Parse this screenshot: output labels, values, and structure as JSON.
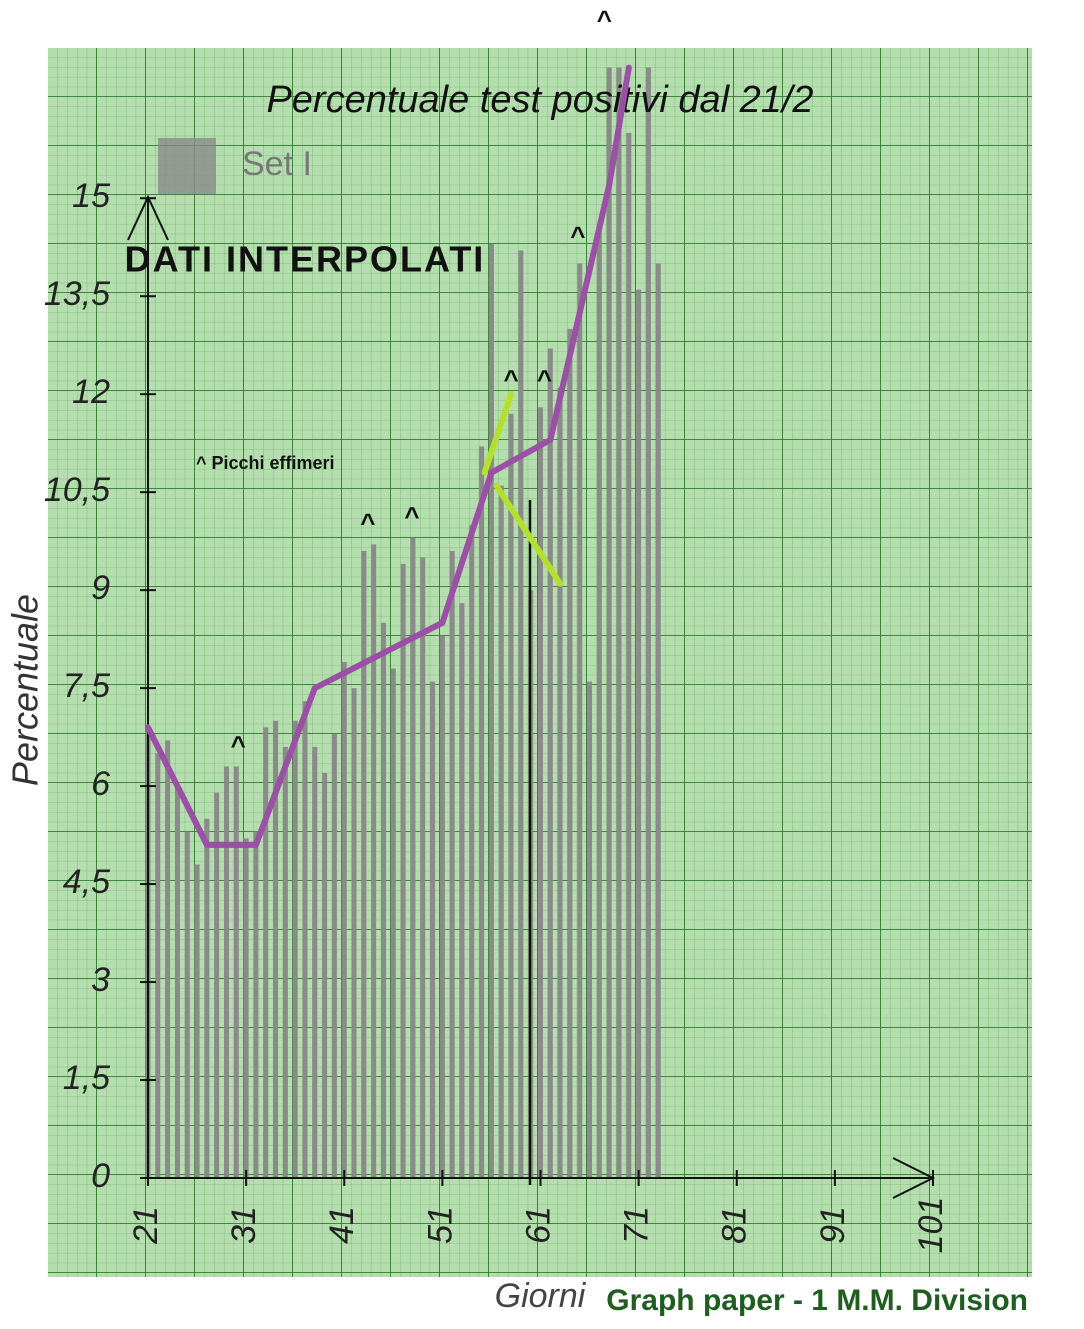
{
  "chart_data": {
    "type": "bar",
    "title": "Percentuale test positivi dal 21/2",
    "x_label": "Giorni",
    "y_label": "Percentuale",
    "legend": "Set I",
    "heading": "DATI INTERPOLATI",
    "note": "^ Picchi effimeri",
    "footer": "Graph paper - 1 M.M. Division",
    "color": "#8a8a8a",
    "x": [
      21,
      22,
      23,
      24,
      25,
      26,
      27,
      28,
      29,
      30,
      31,
      32,
      33,
      34,
      35,
      36,
      37,
      38,
      39,
      40,
      41,
      42,
      43,
      44,
      45,
      46,
      47,
      48,
      49,
      50,
      51,
      52,
      53,
      54,
      55,
      56,
      57,
      58,
      59,
      60,
      61,
      62,
      63,
      64,
      65,
      66,
      67,
      68,
      69,
      70,
      71,
      72,
      73
    ],
    "values": [
      6.9,
      6.5,
      6.7,
      6.0,
      5.3,
      4.8,
      5.5,
      5.9,
      6.3,
      6.3,
      5.2,
      5.3,
      6.9,
      7.0,
      6.6,
      7.0,
      7.3,
      6.6,
      6.2,
      6.8,
      7.9,
      7.5,
      9.6,
      9.7,
      8.5,
      7.8,
      9.4,
      9.8,
      9.5,
      7.6,
      8.3,
      9.6,
      8.8,
      10.0,
      11.2,
      14.3,
      10.6,
      11.7,
      14.2,
      9.0,
      11.8,
      12.7,
      12.1,
      13.0,
      14.0,
      7.6,
      14.5,
      17.0,
      17.0,
      16.0,
      13.6,
      17.0,
      14.0
    ],
    "lines": [
      {
        "color": "#9b4fa6",
        "x": [
          21,
          27,
          32,
          38,
          51,
          56,
          62,
          68,
          70
        ],
        "values": [
          6.9,
          5.1,
          5.1,
          7.5,
          8.5,
          10.8,
          11.3,
          15.2,
          17.0
        ]
      },
      {
        "color": "#b5e02a",
        "x": [
          55.3,
          58
        ],
        "values": [
          10.8,
          12.0
        ]
      },
      {
        "color": "#b5e02a",
        "x": [
          56.5,
          63
        ],
        "values": [
          10.6,
          9.1
        ]
      }
    ],
    "annotations": [
      {
        "text": "^",
        "x": 30.2,
        "y": 6.6
      },
      {
        "text": "^",
        "x": 43.4,
        "y": 10.0
      },
      {
        "text": "^",
        "x": 47.9,
        "y": 10.1
      },
      {
        "text": "^",
        "x": 58.0,
        "y": 12.2
      },
      {
        "text": "^",
        "x": 61.4,
        "y": 12.2
      },
      {
        "text": "^",
        "x": 64.8,
        "y": 14.4
      },
      {
        "text": "^",
        "x": 67.5,
        "y": 17.7
      }
    ],
    "xlim": [
      21,
      101
    ],
    "xticks": [
      21,
      31,
      41,
      51,
      61,
      71,
      81,
      91,
      101
    ],
    "ylim": [
      0,
      17.3
    ],
    "yticks": [
      0,
      {
        "value": 1.5,
        "label": "1,5"
      },
      3,
      {
        "value": 4.5,
        "label": "4,5"
      },
      6,
      {
        "value": 7.5,
        "label": "7,5"
      },
      9,
      {
        "value": 10.5,
        "label": "10,5"
      },
      12,
      {
        "value": 13.5,
        "label": "13,5"
      },
      15
    ]
  }
}
